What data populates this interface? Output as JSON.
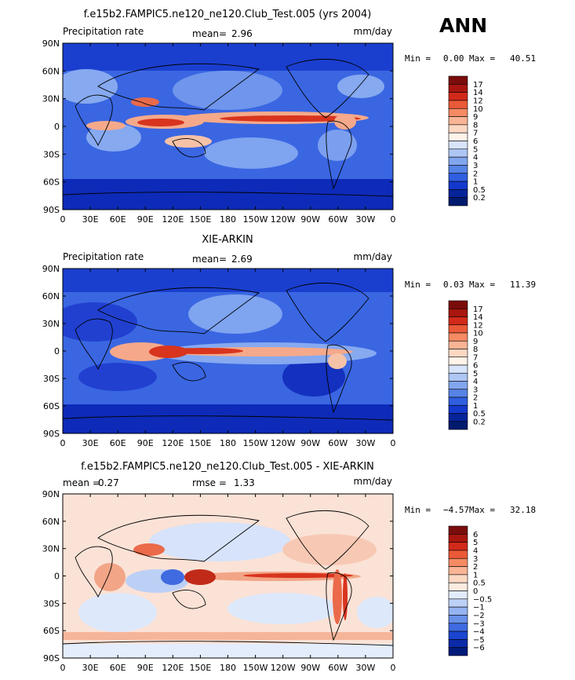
{
  "season": "ANN",
  "colors": {
    "axis": "#000000",
    "ocean_deep": "#0d2bb8",
    "ocean_mid": "#2f5fe6",
    "land_blue": "#7fa4f0",
    "itcz_red": "#d8341e",
    "diff_pos": "#f6c7b4",
    "diff_neg": "#bcd3f5"
  },
  "chart_data": [
    {
      "type": "heatmap",
      "id": "model",
      "title": "f.e15b2.FAMPIC5.ne120_ne120.Club_Test.005 (yrs 2004)",
      "left_label": "Precipitation rate",
      "center_label": "mean=",
      "center_value": "2.96",
      "units": "mm/day",
      "min_label": "Min =",
      "min_value": "0.00",
      "max_label": "Max =",
      "max_value": "40.51",
      "xlim": [
        0,
        360
      ],
      "ylim": [
        -90,
        90
      ],
      "x_ticks": [
        "0",
        "30E",
        "60E",
        "90E",
        "120E",
        "150E",
        "180",
        "150W",
        "120W",
        "90W",
        "60W",
        "30W",
        "0"
      ],
      "y_ticks": [
        "90N",
        "60N",
        "30N",
        "0",
        "30S",
        "60S",
        "90S"
      ],
      "colorbar_levels": [
        "17",
        "14",
        "12",
        "10",
        "9",
        "8",
        "7",
        "6",
        "5",
        "4",
        "3",
        "2",
        "1",
        "0.5",
        "0.2"
      ],
      "colorbar_colors": [
        "#7b0c0c",
        "#a8160f",
        "#d22a1a",
        "#ea5a38",
        "#f58a63",
        "#f9b395",
        "#fcd8c3",
        "#fff3ea",
        "#d8e4fa",
        "#aec6f4",
        "#82a6ee",
        "#5683e6",
        "#2f5fe0",
        "#1338cc",
        "#062499",
        "#001a6e"
      ]
    },
    {
      "type": "heatmap",
      "id": "obs",
      "title": "XIE-ARKIN",
      "left_label": "Precipitation rate",
      "center_label": "mean=",
      "center_value": "2.69",
      "units": "mm/day",
      "min_label": "Min =",
      "min_value": "0.03",
      "max_label": "Max =",
      "max_value": "11.39",
      "xlim": [
        0,
        360
      ],
      "ylim": [
        -90,
        90
      ],
      "x_ticks": [
        "0",
        "30E",
        "60E",
        "90E",
        "120E",
        "150E",
        "180",
        "150W",
        "120W",
        "90W",
        "60W",
        "30W",
        "0"
      ],
      "y_ticks": [
        "90N",
        "60N",
        "30N",
        "0",
        "30S",
        "60S",
        "90S"
      ],
      "colorbar_levels": [
        "17",
        "14",
        "12",
        "10",
        "9",
        "8",
        "7",
        "6",
        "5",
        "4",
        "3",
        "2",
        "1",
        "0.5",
        "0.2"
      ],
      "colorbar_colors": [
        "#7b0c0c",
        "#a8160f",
        "#d22a1a",
        "#ea5a38",
        "#f58a63",
        "#f9b395",
        "#fcd8c3",
        "#fff3ea",
        "#d8e4fa",
        "#aec6f4",
        "#82a6ee",
        "#5683e6",
        "#2f5fe0",
        "#1338cc",
        "#062499",
        "#001a6e"
      ]
    },
    {
      "type": "heatmap",
      "id": "diff",
      "title": "f.e15b2.FAMPIC5.ne120_ne120.Club_Test.005 - XIE-ARKIN",
      "left_label": "mean =",
      "left_value": "0.27",
      "center_label": "rmse =",
      "center_value": "1.33",
      "units": "mm/day",
      "min_label": "Min =",
      "min_value": "−4.57",
      "max_label": "Max =",
      "max_value": "32.18",
      "xlim": [
        0,
        360
      ],
      "ylim": [
        -90,
        90
      ],
      "x_ticks": [
        "0",
        "30E",
        "60E",
        "90E",
        "120E",
        "150E",
        "180",
        "150W",
        "120W",
        "90W",
        "60W",
        "30W",
        "0"
      ],
      "y_ticks": [
        "90N",
        "60N",
        "30N",
        "0",
        "30S",
        "60S",
        "90S"
      ],
      "colorbar_levels": [
        "6",
        "5",
        "4",
        "3",
        "2",
        "1",
        "0.5",
        "0",
        "−0.5",
        "−1",
        "−2",
        "−3",
        "−4",
        "−5",
        "−6"
      ],
      "colorbar_colors": [
        "#7b0c0c",
        "#a8160f",
        "#d22a1a",
        "#ea5a38",
        "#f58a63",
        "#f9b395",
        "#fcd8c3",
        "#fdebe0",
        "#e2ebfb",
        "#bcd0f6",
        "#94b3f0",
        "#6890e8",
        "#3f6ae0",
        "#1a45d0",
        "#0a2aa8",
        "#001a7a"
      ]
    }
  ]
}
